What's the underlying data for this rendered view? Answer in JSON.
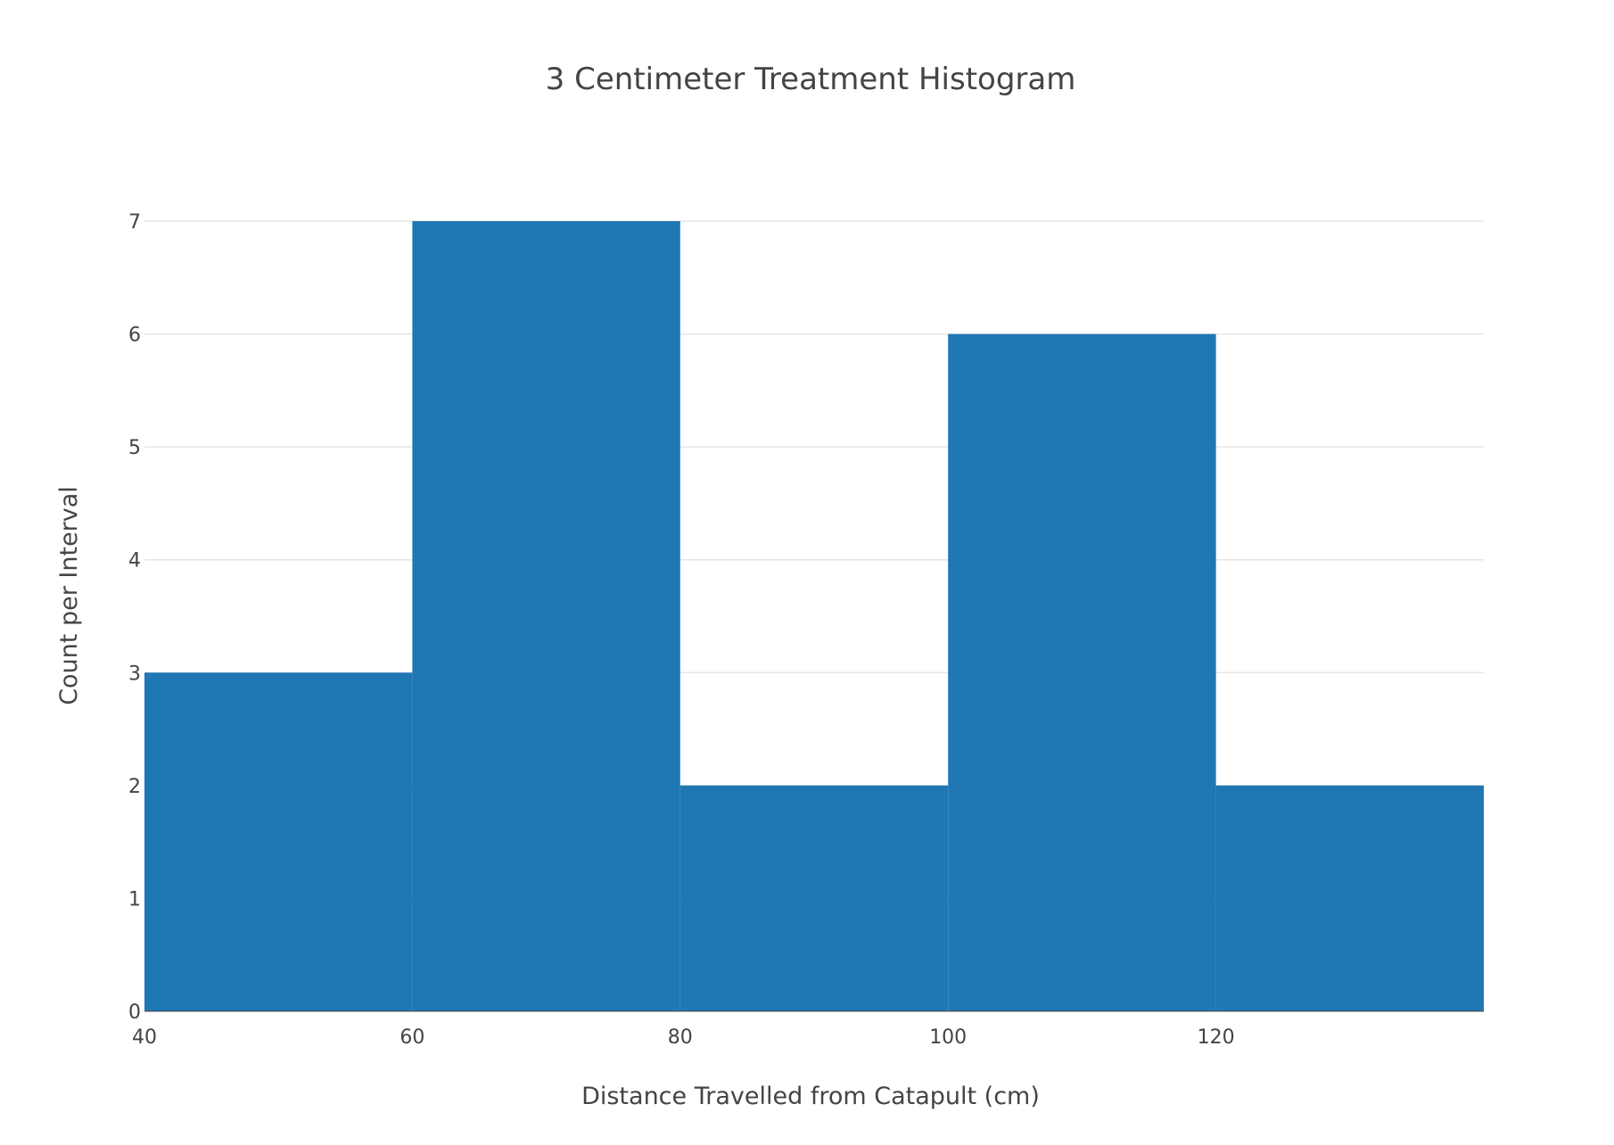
{
  "chart_data": {
    "type": "bar",
    "subtype": "histogram",
    "title": "3 Centimeter Treatment Histogram",
    "xlabel": "Distance Travelled from Catapult (cm)",
    "ylabel": "Count per Interval",
    "bins": [
      {
        "start": 40,
        "end": 60,
        "count": 3
      },
      {
        "start": 60,
        "end": 80,
        "count": 7
      },
      {
        "start": 80,
        "end": 100,
        "count": 2
      },
      {
        "start": 100,
        "end": 120,
        "count": 6
      },
      {
        "start": 120,
        "end": 140,
        "count": 2
      }
    ],
    "xlim": [
      40,
      140
    ],
    "ylim": [
      0,
      7
    ],
    "x_ticks": [
      40,
      60,
      80,
      100,
      120
    ],
    "y_ticks": [
      0,
      1,
      2,
      3,
      4,
      5,
      6,
      7
    ],
    "grid": "horizontal",
    "legend": "none",
    "bar_color": "#1f77b4",
    "text_color": "#444444",
    "grid_color": "#e6e6e6"
  }
}
